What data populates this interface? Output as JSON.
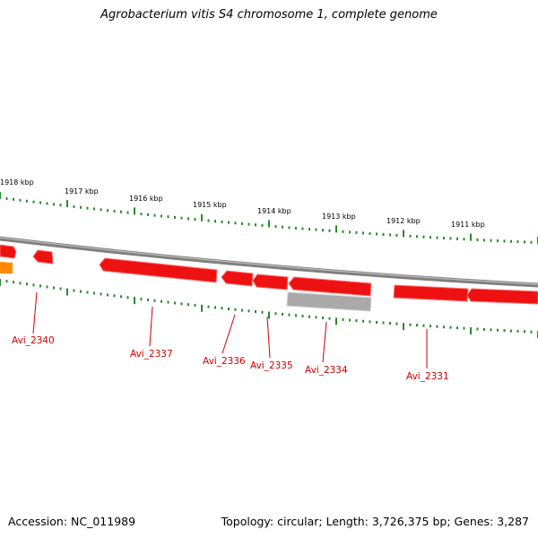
{
  "title": "Agrobacterium vitis S4 chromosome 1, complete genome",
  "footer": {
    "accession": "Accession: NC_011989",
    "summary": "Topology: circular; Length: 3,726,375 bp; Genes: 3,287"
  },
  "colors": {
    "gene": "#ee1111",
    "gene_light": "#ff7070",
    "gene_dark": "#c20000",
    "gene_partial": "#ff8a00",
    "gray_feature": "#a9a9a9",
    "backbone": "#7f7f7f",
    "tick": "#2a8a2a",
    "label": "#cc0000",
    "scale_text": "#000000"
  },
  "scale_labels": [
    "1918 kbp",
    "1917 kbp",
    "1916 kbp",
    "1915 kbp",
    "1914 kbp",
    "1913 kbp",
    "1912 kbp",
    "1911 kbp"
  ],
  "gene_labels": [
    "Avi_2340",
    "Avi_2337",
    "Avi_2336",
    "Avi_2335",
    "Avi_2334",
    "Avi_2331"
  ]
}
